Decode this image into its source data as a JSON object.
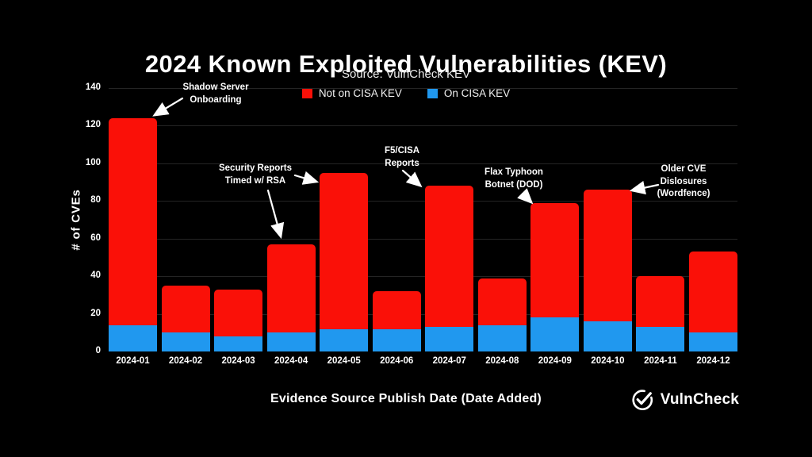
{
  "header": {
    "title": "2024 Known Exploited Vulnerabilities (KEV)",
    "subtitle": "Source: VulnCheck KEV"
  },
  "legend": [
    {
      "label": "Not on CISA KEV",
      "color": "#fa1008"
    },
    {
      "label": "On CISA KEV",
      "color": "#2098ef"
    }
  ],
  "colors": {
    "background": "#000000",
    "text": "#ffffff",
    "red": "#fa1008",
    "blue": "#2098ef",
    "gridline": "#242424"
  },
  "chart_data": {
    "type": "bar",
    "stacked": true,
    "title": "2024 Known Exploited Vulnerabilities (KEV)",
    "subtitle": "Source: VulnCheck KEV",
    "xlabel": "Evidence Source Publish Date (Date Added)",
    "ylabel": "# of CVEs",
    "ylim": [
      0,
      140
    ],
    "ytick_step": 20,
    "grid": true,
    "legend_position": "top",
    "categories": [
      "2024-01",
      "2024-02",
      "2024-03",
      "2024-04",
      "2024-05",
      "2024-06",
      "2024-07",
      "2024-08",
      "2024-09",
      "2024-10",
      "2024-11",
      "2024-12"
    ],
    "series": [
      {
        "name": "Not on CISA KEV",
        "color": "#fa1008",
        "values": [
          110,
          25,
          25,
          47,
          83,
          20,
          75,
          25,
          61,
          70,
          27,
          43
        ]
      },
      {
        "name": "On CISA KEV",
        "color": "#2098ef",
        "values": [
          14,
          10,
          8,
          10,
          12,
          12,
          13,
          14,
          18,
          16,
          13,
          10
        ]
      }
    ],
    "totals": [
      124,
      35,
      33,
      57,
      95,
      32,
      88,
      39,
      79,
      86,
      40,
      53
    ],
    "annotations": [
      {
        "lines": [
          "Shadow Server",
          "Onboarding"
        ],
        "target": "2024-01",
        "cx": 272,
        "top": 103,
        "arrows": [
          [
            230,
            124,
            195,
            145
          ]
        ]
      },
      {
        "lines": [
          "Security Reports",
          "Timed w/ RSA"
        ],
        "target": "2024-04, 2024-05",
        "cx": 322,
        "top": 205,
        "arrows": [
          [
            372,
            221,
            399,
            229
          ],
          [
            338,
            240,
            354,
            298
          ]
        ]
      },
      {
        "lines": [
          "F5/CISA",
          "Reports"
        ],
        "target": "2024-07",
        "cx": 507,
        "top": 183,
        "arrows": [
          [
            508,
            215,
            530,
            234
          ]
        ]
      },
      {
        "lines": [
          "Flax Typhoon",
          "Botnet (DOD)"
        ],
        "target": "2024-09",
        "cx": 648,
        "top": 210,
        "arrows": [
          [
            659,
            244,
            670,
            255
          ]
        ]
      },
      {
        "lines": [
          "Older CVE",
          "Dislosures",
          "(Wordfence)"
        ],
        "target": "2024-10",
        "cx": 862,
        "top": 206,
        "arrows": [
          [
            830,
            233,
            797,
            240
          ]
        ]
      }
    ]
  },
  "footer": {
    "xlabel": "Evidence Source Publish Date (Date Added)",
    "brand": "VulnCheck"
  }
}
